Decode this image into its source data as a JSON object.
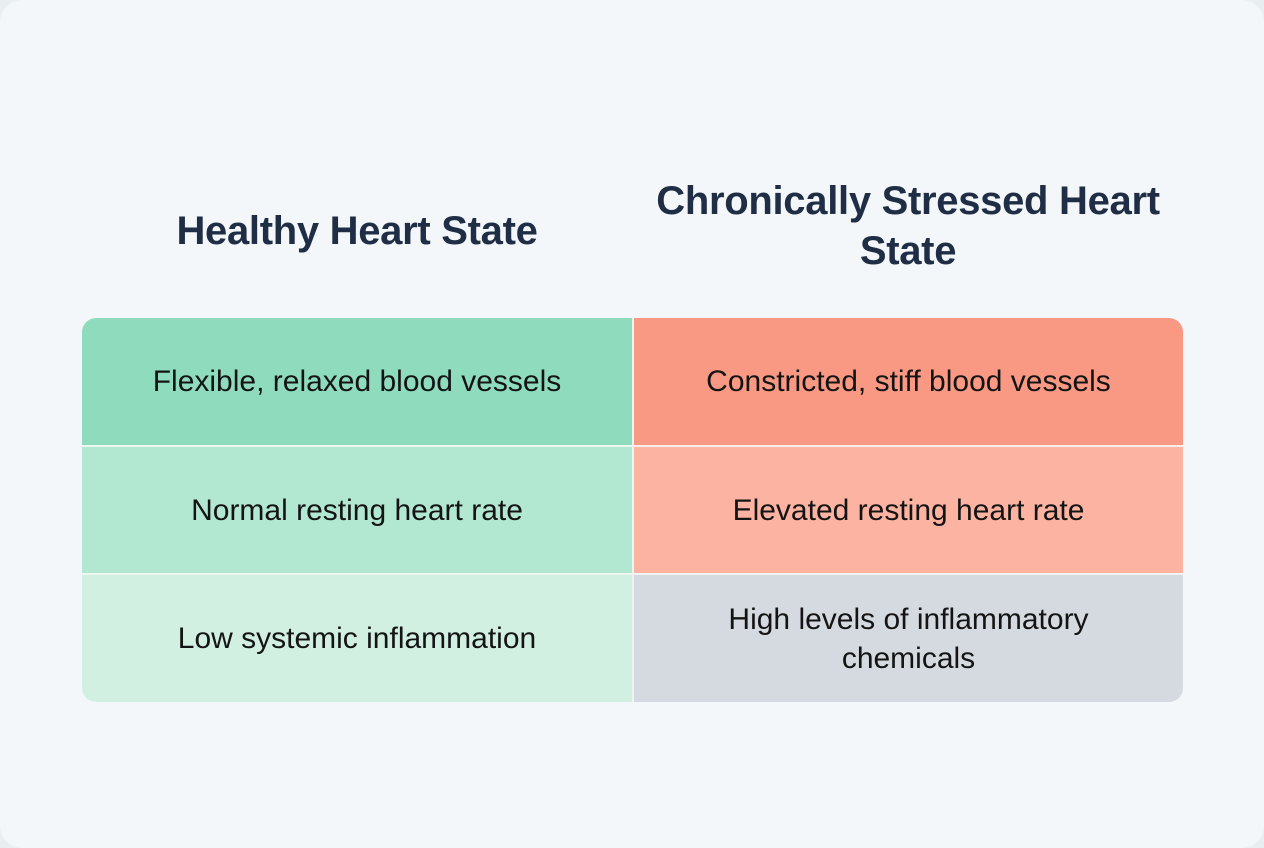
{
  "title_healthy": "Healthy Heart State",
  "title_stressed": "Chronically Stressed Heart State",
  "columns": [
    {
      "header": "Healthy Heart State",
      "rows": [
        "Flexible, relaxed blood vessels",
        "Normal resting heart rate",
        "Low systemic inflammation"
      ]
    },
    {
      "header": "Chronically Stressed Heart State",
      "rows": [
        "Constricted, stiff blood vessels",
        "Elevated resting heart rate",
        "High levels of inflammatory chemicals"
      ]
    }
  ],
  "colors": {
    "heading_text": "#1f2d45",
    "healthy_row_1": "#8edcbd",
    "healthy_row_2": "#b2e8d1",
    "healthy_row_3": "#d1f0e2",
    "stressed_row_1": "#f99883",
    "stressed_row_2": "#fcb3a2",
    "stressed_row_3": "#d5d9e0",
    "background": "#f3f7f9"
  }
}
